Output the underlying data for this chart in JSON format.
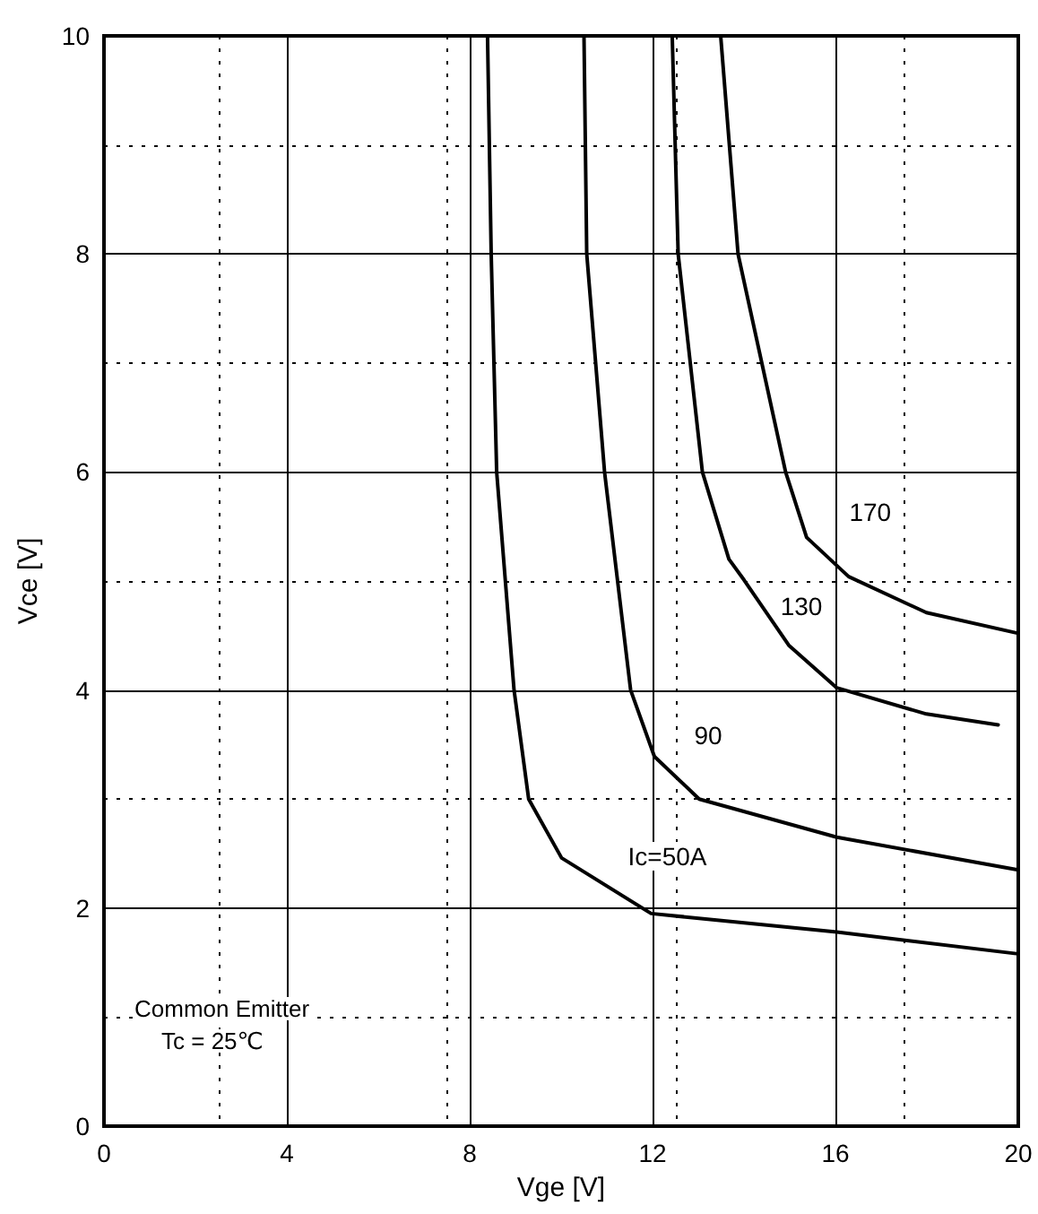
{
  "chart_data": {
    "type": "line",
    "xlabel": "Vge [V]",
    "ylabel": "Vce [V]",
    "xlim": [
      0,
      20
    ],
    "xticks": [
      0,
      4,
      8,
      12,
      16,
      20
    ],
    "ylim": [
      0,
      10
    ],
    "yticks": [
      0,
      2,
      4,
      6,
      8,
      10
    ],
    "grid": true,
    "marker": "none",
    "line_style": "solid",
    "series": [
      {
        "name": "Ic=50A",
        "color": "#000000",
        "x": [
          8.39,
          8.47,
          8.59,
          8.97,
          9.29,
          10.01,
          11.97,
          16.03,
          20
        ],
        "values": [
          10,
          8,
          6,
          4,
          3,
          2.46,
          1.95,
          1.78,
          1.58
        ]
      },
      {
        "name": "90",
        "color": "#000000",
        "x": [
          10.5,
          10.56,
          10.95,
          11.52,
          12.04,
          13.02,
          16.03,
          20
        ],
        "values": [
          10,
          8,
          6,
          4,
          3.39,
          3,
          2.65,
          2.35
        ]
      },
      {
        "name": "130",
        "color": "#000000",
        "x": [
          12.43,
          12.56,
          13.09,
          13.67,
          14.0,
          14.98,
          16.03,
          17.99,
          19.56
        ],
        "values": [
          10,
          8,
          6,
          5.2,
          5.01,
          4.41,
          4.02,
          3.78,
          3.68
        ]
      },
      {
        "name": "170",
        "color": "#000000",
        "x": [
          13.49,
          13.87,
          14.91,
          15.37,
          16.29,
          17.99,
          20
        ],
        "values": [
          10,
          8,
          6,
          5.4,
          5.04,
          4.71,
          4.52
        ]
      }
    ],
    "annotations": [
      "Common Emitter",
      "Tc = 25℃"
    ]
  }
}
